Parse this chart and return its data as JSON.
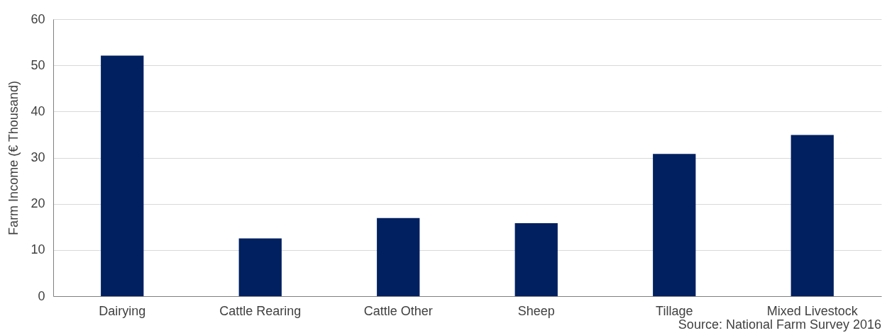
{
  "chart_data": {
    "type": "bar",
    "ylabel": "Farm Income (€ Thousand)",
    "categories": [
      "Dairying",
      "Cattle Rearing",
      "Cattle Other",
      "Sheep",
      "Tillage",
      "Mixed Livestock"
    ],
    "values": [
      52.1,
      12.5,
      16.9,
      15.8,
      30.8,
      34.9
    ],
    "color": "#002060",
    "ylim": [
      0,
      60
    ],
    "yticks": [
      0,
      10,
      20,
      30,
      40,
      50,
      60
    ],
    "grid": "y",
    "annotations": [
      "Source: National Farm Survey 2016"
    ]
  }
}
